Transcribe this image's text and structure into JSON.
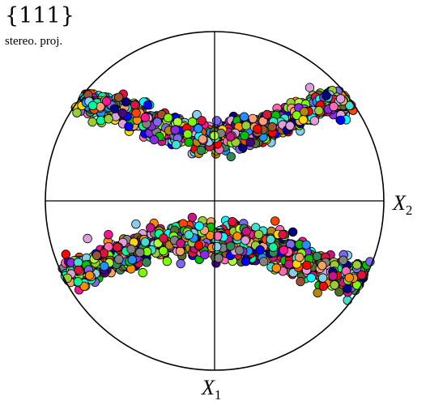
{
  "title": "{111}",
  "subtitle": "stereo. proj.",
  "chart_data": {
    "type": "scatter",
    "title": "{111}",
    "subtitle": "stereo. proj.",
    "projection": "stereographic",
    "axes": [
      {
        "name": "X",
        "subscript": "2",
        "position": "right"
      },
      {
        "name": "X",
        "subscript": "1",
        "position": "bottom"
      }
    ],
    "xlim": [
      -1,
      1
    ],
    "ylim": [
      -1,
      1
    ],
    "grid": false,
    "legend": "none",
    "marker": "circle with black edge, random fill color",
    "point_count_estimate": 2400,
    "clusters": [
      {
        "name": "upper band",
        "center_curve": [
          [
            -0.9,
            0.63
          ],
          [
            -0.6,
            0.55
          ],
          [
            -0.3,
            0.43
          ],
          [
            0.0,
            0.38
          ],
          [
            0.3,
            0.43
          ],
          [
            0.6,
            0.55
          ],
          [
            0.9,
            0.63
          ]
        ],
        "half_width": 0.075
      },
      {
        "name": "lower band",
        "center_curve": [
          [
            -0.92,
            -0.47
          ],
          [
            -0.6,
            -0.33
          ],
          [
            -0.3,
            -0.24
          ],
          [
            0.0,
            -0.22
          ],
          [
            0.3,
            -0.26
          ],
          [
            0.6,
            -0.38
          ],
          [
            0.92,
            -0.5
          ]
        ],
        "half_width": 0.095
      }
    ],
    "palette": [
      "#ff0000",
      "#00c000",
      "#0000ff",
      "#ffd700",
      "#ff69b4",
      "#00ffff",
      "#8a2be2",
      "#ff8c00",
      "#7cfc00",
      "#1e90ff",
      "#a0522d",
      "#808080",
      "#dda0dd",
      "#00fa9a",
      "#dc143c",
      "#4b0082",
      "#f4a460",
      "#2e8b57",
      "#ff1493",
      "#87ceeb",
      "#9acd32",
      "#000080",
      "#ffa07a",
      "#40e0d0",
      "#b8860b",
      "#c71585",
      "#7b68ee",
      "#adff2f",
      "#556b2f",
      "#ff4500"
    ]
  }
}
